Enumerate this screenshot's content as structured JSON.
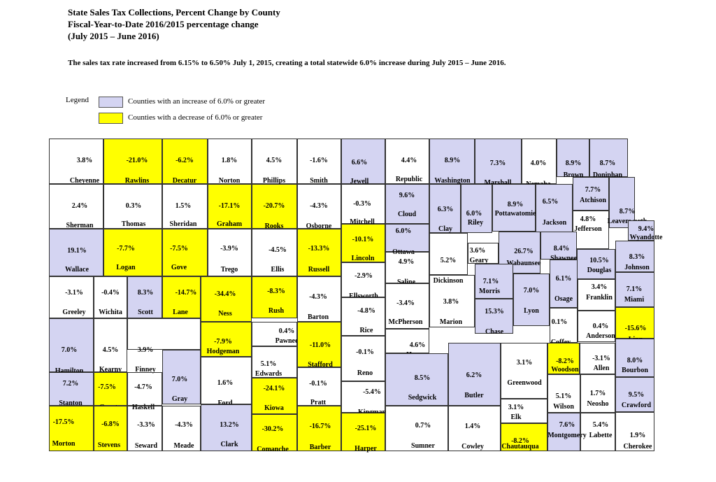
{
  "title": {
    "line1": "State Sales Tax Collections, Percent Change by County",
    "line2": "Fiscal-Year-to-Date 2016/2015 percentage change",
    "line3": "(July 2015 – June 2016)"
  },
  "note": "The sales tax rate increased from 6.15% to 6.50% July 1, 2015, creating a total statewide 6.0% increase during July 2015 – June 2016.",
  "legend": {
    "label": "Legend",
    "increase": {
      "text": "Counties with an increase of 6.0% or greater",
      "color": "#d4d4f2"
    },
    "decrease": {
      "text": "Counties with a decrease of 6.0% or greater",
      "color": "#ffff00"
    }
  },
  "counties": [
    {
      "name": "Cheyenne",
      "pct": "3.8%",
      "cat": "none"
    },
    {
      "name": "Rawlins",
      "pct": "-21.0%",
      "cat": "dec"
    },
    {
      "name": "Decatur",
      "pct": "-6.2%",
      "cat": "dec"
    },
    {
      "name": "Norton",
      "pct": "1.8%",
      "cat": "none"
    },
    {
      "name": "Phillips",
      "pct": "4.5%",
      "cat": "none"
    },
    {
      "name": "Smith",
      "pct": "-1.6%",
      "cat": "none"
    },
    {
      "name": "Jewell",
      "pct": "6.6%",
      "cat": "inc"
    },
    {
      "name": "Republic",
      "pct": "4.4%",
      "cat": "none"
    },
    {
      "name": "Washington",
      "pct": "8.9%",
      "cat": "inc"
    },
    {
      "name": "Marshall",
      "pct": "7.3%",
      "cat": "inc"
    },
    {
      "name": "Nemaha",
      "pct": "4.0%",
      "cat": "none"
    },
    {
      "name": "Brown",
      "pct": "8.9%",
      "cat": "inc"
    },
    {
      "name": "Doniphan",
      "pct": "8.7%",
      "cat": "inc"
    },
    {
      "name": "Sherman",
      "pct": "2.4%",
      "cat": "none"
    },
    {
      "name": "Thomas",
      "pct": "0.3%",
      "cat": "none"
    },
    {
      "name": "Sheridan",
      "pct": "1.5%",
      "cat": "none"
    },
    {
      "name": "Graham",
      "pct": "-17.1%",
      "cat": "dec"
    },
    {
      "name": "Rooks",
      "pct": "-20.7%",
      "cat": "dec"
    },
    {
      "name": "Osborne",
      "pct": "-4.3%",
      "cat": "none"
    },
    {
      "name": "Mitchell",
      "pct": "-0.3%",
      "cat": "none"
    },
    {
      "name": "Cloud",
      "pct": "9.6%",
      "cat": "inc"
    },
    {
      "name": "Clay",
      "pct": "6.3%",
      "cat": "inc"
    },
    {
      "name": "Riley",
      "pct": "6.0%",
      "cat": "inc"
    },
    {
      "name": "Pottawatomie",
      "pct": "8.9%",
      "cat": "inc"
    },
    {
      "name": "Jackson",
      "pct": "6.5%",
      "cat": "inc"
    },
    {
      "name": "Atchison",
      "pct": "7.7%",
      "cat": "inc"
    },
    {
      "name": "Jefferson",
      "pct": "4.8%",
      "cat": "none"
    },
    {
      "name": "Leavenworth",
      "pct": "8.7%",
      "cat": "inc"
    },
    {
      "name": "Wyandotte",
      "pct": "9.4%",
      "cat": "inc"
    },
    {
      "name": "Wallace",
      "pct": "19.1%",
      "cat": "inc"
    },
    {
      "name": "Logan",
      "pct": "-7.7%",
      "cat": "dec"
    },
    {
      "name": "Gove",
      "pct": "-7.5%",
      "cat": "dec"
    },
    {
      "name": "Trego",
      "pct": "-3.9%",
      "cat": "none"
    },
    {
      "name": "Ellis",
      "pct": "-4.5%",
      "cat": "none"
    },
    {
      "name": "Russell",
      "pct": "-13.3%",
      "cat": "dec"
    },
    {
      "name": "Lincoln",
      "pct": "-10.1%",
      "cat": "dec"
    },
    {
      "name": "Ottawa",
      "pct": "6.0%",
      "cat": "inc"
    },
    {
      "name": "Saline",
      "pct": "4.9%",
      "cat": "none"
    },
    {
      "name": "Dickinson",
      "pct": "5.2%",
      "cat": "none"
    },
    {
      "name": "Geary",
      "pct": "3.6%",
      "cat": "none"
    },
    {
      "name": "Wabaunsee",
      "pct": "26.7%",
      "cat": "inc"
    },
    {
      "name": "Shawnee",
      "pct": "8.4%",
      "cat": "inc"
    },
    {
      "name": "Douglas",
      "pct": "10.5%",
      "cat": "inc"
    },
    {
      "name": "Johnson",
      "pct": "8.3%",
      "cat": "inc"
    },
    {
      "name": "Greeley",
      "pct": "-3.1%",
      "cat": "none"
    },
    {
      "name": "Wichita",
      "pct": "-0.4%",
      "cat": "none"
    },
    {
      "name": "Scott",
      "pct": "8.3%",
      "cat": "inc"
    },
    {
      "name": "Lane",
      "pct": "-14.7%",
      "cat": "dec"
    },
    {
      "name": "Ness",
      "pct": "-34.4%",
      "cat": "dec"
    },
    {
      "name": "Rush",
      "pct": "-8.3%",
      "cat": "dec"
    },
    {
      "name": "Barton",
      "pct": "-4.3%",
      "cat": "none"
    },
    {
      "name": "Ellsworth",
      "pct": "-2.9%",
      "cat": "none"
    },
    {
      "name": "McPherson",
      "pct": "-3.4%",
      "cat": "none"
    },
    {
      "name": "Marion",
      "pct": "3.8%",
      "cat": "none"
    },
    {
      "name": "Morris",
      "pct": "7.1%",
      "cat": "inc"
    },
    {
      "name": "Chase",
      "pct": "15.3%",
      "cat": "inc"
    },
    {
      "name": "Lyon",
      "pct": "7.0%",
      "cat": "inc"
    },
    {
      "name": "Osage",
      "pct": "6.1%",
      "cat": "inc"
    },
    {
      "name": "Franklin",
      "pct": "3.4%",
      "cat": "none"
    },
    {
      "name": "Miami",
      "pct": "7.1%",
      "cat": "inc"
    },
    {
      "name": "Hamilton",
      "pct": "7.0%",
      "cat": "inc"
    },
    {
      "name": "Kearny",
      "pct": "4.5%",
      "cat": "none"
    },
    {
      "name": "Finney",
      "pct": "3.9%",
      "cat": "none"
    },
    {
      "name": "Hodgeman",
      "pct": "-7.9%",
      "cat": "dec"
    },
    {
      "name": "Pawnee",
      "pct": "0.4%",
      "cat": "none"
    },
    {
      "name": "Stafford",
      "pct": "-11.0%",
      "cat": "dec"
    },
    {
      "name": "Rice",
      "pct": "-4.8%",
      "cat": "none"
    },
    {
      "name": "Reno",
      "pct": "-0.1%",
      "cat": "none"
    },
    {
      "name": "Harvey",
      "pct": "4.6%",
      "cat": "none"
    },
    {
      "name": "Coffey",
      "pct": "0.1%",
      "cat": "none"
    },
    {
      "name": "Anderson",
      "pct": "0.4%",
      "cat": "none"
    },
    {
      "name": "Linn",
      "pct": "-15.6%",
      "cat": "dec"
    },
    {
      "name": "Stanton",
      "pct": "7.2%",
      "cat": "inc"
    },
    {
      "name": "Grant",
      "pct": "-7.5%",
      "cat": "dec"
    },
    {
      "name": "Haskell",
      "pct": "-4.7%",
      "cat": "none"
    },
    {
      "name": "Gray",
      "pct": "7.0%",
      "cat": "inc"
    },
    {
      "name": "Ford",
      "pct": "1.6%",
      "cat": "none"
    },
    {
      "name": "Edwards",
      "pct": "5.1%",
      "cat": "none"
    },
    {
      "name": "Kiowa",
      "pct": "-24.1%",
      "cat": "dec"
    },
    {
      "name": "Pratt",
      "pct": "-0.1%",
      "cat": "none"
    },
    {
      "name": "Kingman",
      "pct": "-5.4%",
      "cat": "none"
    },
    {
      "name": "Sedgwick",
      "pct": "8.5%",
      "cat": "inc"
    },
    {
      "name": "Butler",
      "pct": "6.2%",
      "cat": "inc"
    },
    {
      "name": "Greenwood",
      "pct": "3.1%",
      "cat": "none"
    },
    {
      "name": "Woodson",
      "pct": "-8.2%",
      "cat": "dec"
    },
    {
      "name": "Allen",
      "pct": "-3.1%",
      "cat": "none"
    },
    {
      "name": "Bourbon",
      "pct": "8.0%",
      "cat": "inc"
    },
    {
      "name": "Wilson",
      "pct": "5.1%",
      "cat": "none"
    },
    {
      "name": "Neosho",
      "pct": "1.7%",
      "cat": "none"
    },
    {
      "name": "Crawford",
      "pct": "9.5%",
      "cat": "inc"
    },
    {
      "name": "Morton",
      "pct": "-17.5%",
      "cat": "dec"
    },
    {
      "name": "Stevens",
      "pct": "-6.8%",
      "cat": "dec"
    },
    {
      "name": "Seward",
      "pct": "-3.3%",
      "cat": "none"
    },
    {
      "name": "Meade",
      "pct": "-4.3%",
      "cat": "none"
    },
    {
      "name": "Clark",
      "pct": "13.2%",
      "cat": "inc"
    },
    {
      "name": "Comanche",
      "pct": "-30.2%",
      "cat": "dec"
    },
    {
      "name": "Barber",
      "pct": "-16.7%",
      "cat": "dec"
    },
    {
      "name": "Harper",
      "pct": "-25.1%",
      "cat": "dec"
    },
    {
      "name": "Sumner",
      "pct": "0.7%",
      "cat": "none"
    },
    {
      "name": "Cowley",
      "pct": "1.4%",
      "cat": "none"
    },
    {
      "name": "Elk",
      "pct": "3.1%",
      "cat": "none"
    },
    {
      "name": "Chautauqua",
      "pct": "-8.2%",
      "cat": "dec"
    },
    {
      "name": "Montgomery",
      "pct": "7.6%",
      "cat": "inc"
    },
    {
      "name": "Labette",
      "pct": "5.4%",
      "cat": "none"
    },
    {
      "name": "Cherokee",
      "pct": "1.9%",
      "cat": "none"
    }
  ]
}
